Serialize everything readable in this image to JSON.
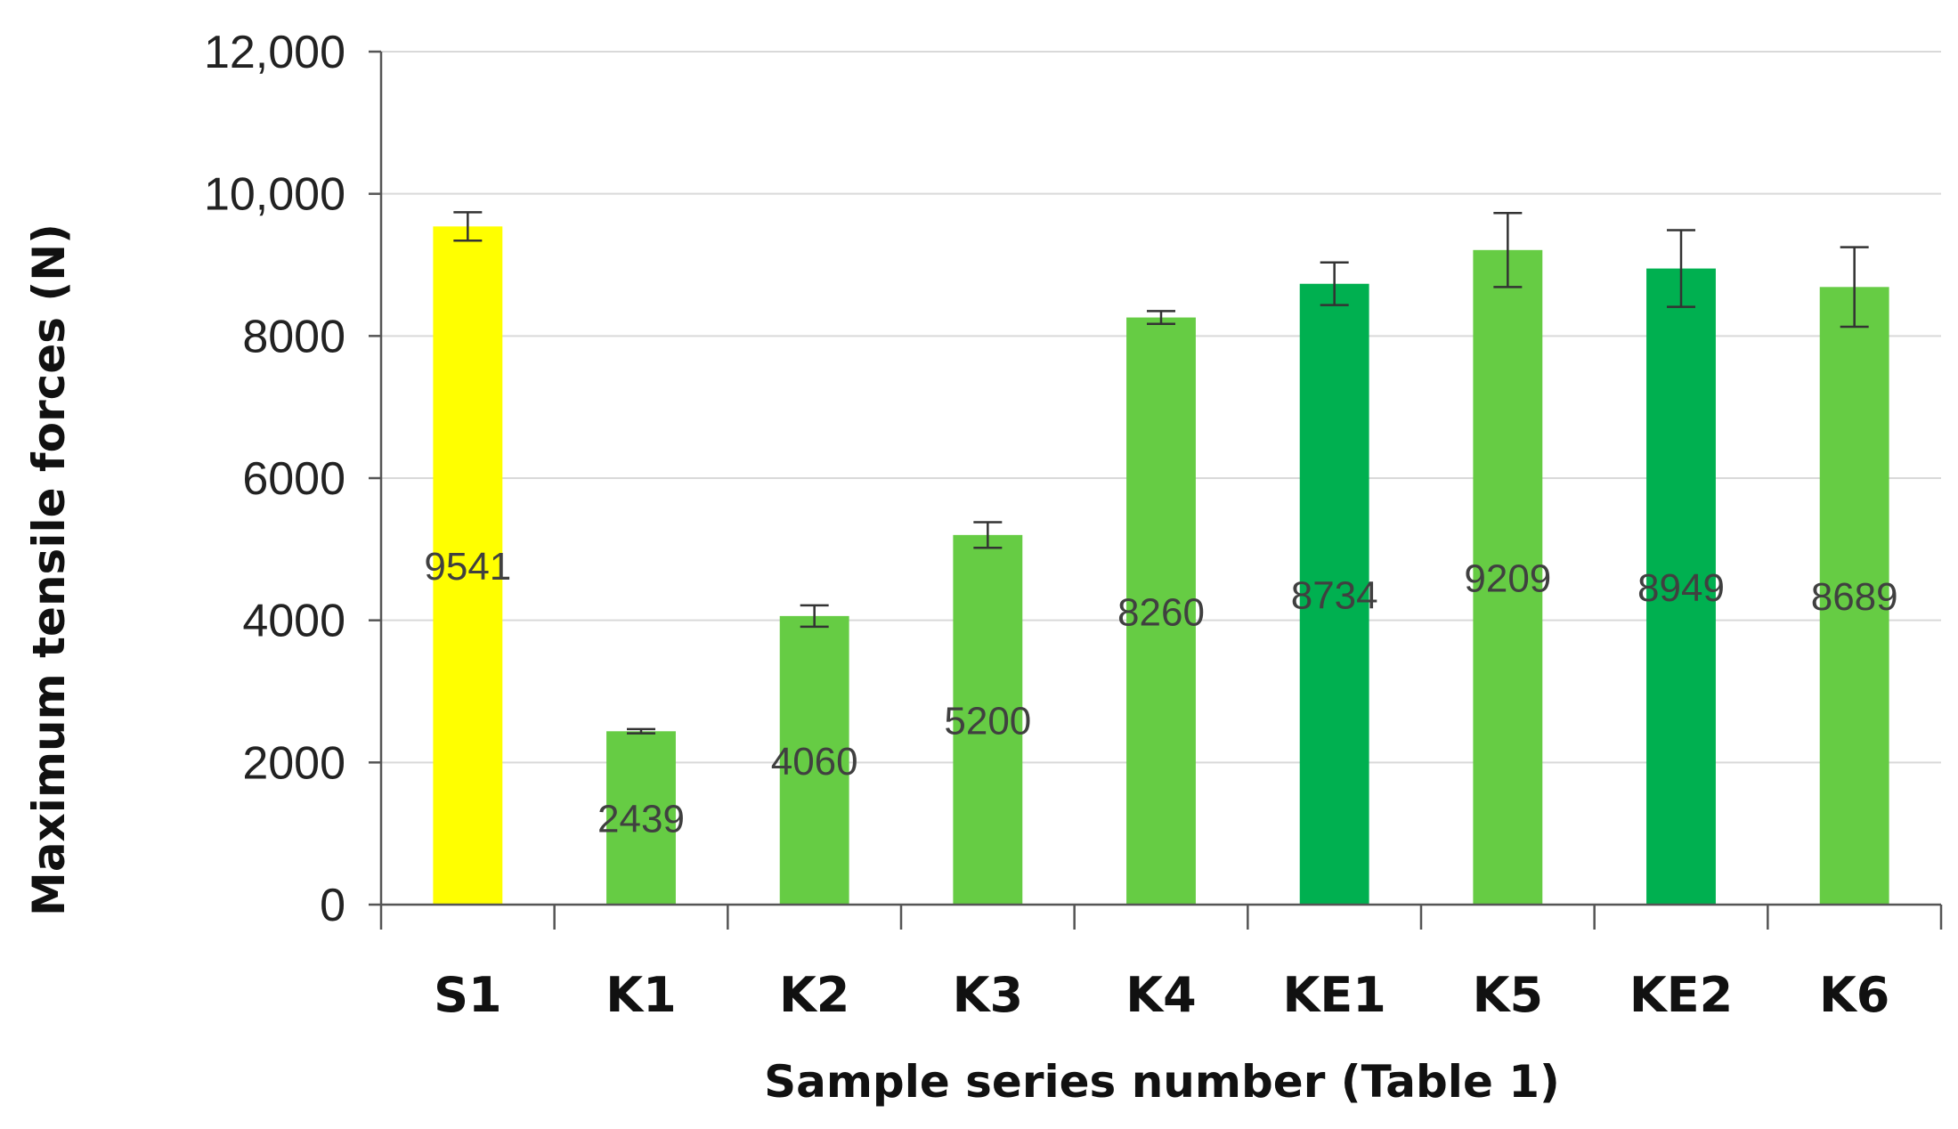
{
  "chart_data": {
    "type": "bar",
    "title": "",
    "xlabel": "Sample series  number (Table 1)",
    "ylabel": "Maximum tensile forces (N)",
    "ylim": [
      0,
      12000
    ],
    "yticks": [
      0,
      2000,
      4000,
      6000,
      8000,
      10000,
      12000
    ],
    "ytick_labels": [
      "0",
      "2000",
      "4000",
      "6000",
      "8000",
      "10,000",
      "12,000"
    ],
    "grid": true,
    "categories": [
      "S1",
      "K1",
      "K2",
      "K3",
      "K4",
      "KE1",
      "K5",
      "KE2",
      "K6"
    ],
    "values": [
      9541,
      2439,
      4060,
      5200,
      8260,
      8734,
      9209,
      8949,
      8689
    ],
    "errors": [
      200,
      30,
      150,
      180,
      90,
      300,
      520,
      540,
      560
    ],
    "value_labels": [
      "9541",
      "2439",
      "4060",
      "5200",
      "8260",
      "8734",
      "9209",
      "8949",
      "8689"
    ],
    "bar_colors": [
      "#FFFF00",
      "#66CC44",
      "#66CC44",
      "#66CC44",
      "#66CC44",
      "#00B050",
      "#66CC44",
      "#00B050",
      "#66CC44"
    ]
  }
}
